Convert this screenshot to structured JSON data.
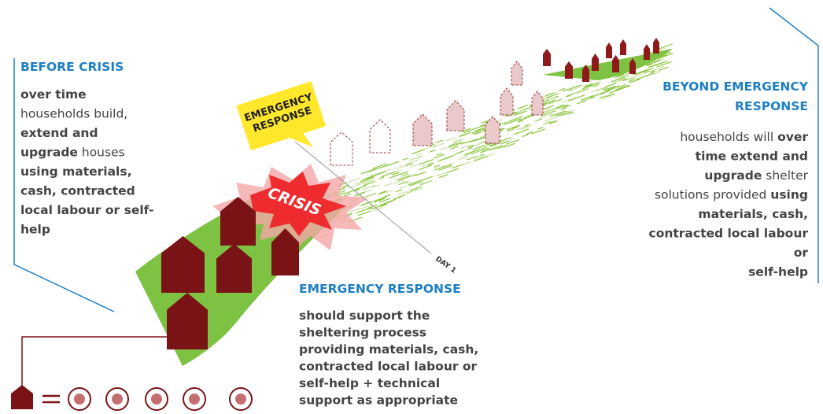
{
  "before": {
    "title": "BEFORE CRISIS",
    "lines": [
      [
        {
          "text": "over time",
          "bold": true
        }
      ],
      [
        {
          "text": "households build,",
          "bold": false
        }
      ],
      [
        {
          "text": "extend and",
          "bold": true
        }
      ],
      [
        {
          "text": "upgrade",
          "bold": true
        },
        {
          "text": " houses",
          "bold": false
        }
      ],
      [
        {
          "text": "using materials,",
          "bold": true
        }
      ],
      [
        {
          "text": "cash, contracted",
          "bold": true
        }
      ],
      [
        {
          "text": "local labour or self-",
          "bold": true
        }
      ],
      [
        {
          "text": "help",
          "bold": true
        }
      ]
    ]
  },
  "emergency": {
    "title": "EMERGENCY RESPONSE",
    "lines": [
      [
        {
          "text": "should support the",
          "bold": true
        }
      ],
      [
        {
          "text": "sheltering process",
          "bold": true
        }
      ],
      [
        {
          "text": "providing materials, cash,",
          "bold": true
        }
      ],
      [
        {
          "text": "contracted local labour or",
          "bold": true
        }
      ],
      [
        {
          "text": "self-help + technical",
          "bold": true
        }
      ],
      [
        {
          "text": "support as appropriate",
          "bold": true
        }
      ]
    ]
  },
  "beyond": {
    "title_lines": [
      "BEYOND EMERGENCY",
      "RESPONSE"
    ],
    "lines": [
      [
        {
          "text": "households will ",
          "bold": false
        },
        {
          "text": "over",
          "bold": true
        }
      ],
      [
        {
          "text": "time extend and",
          "bold": true
        }
      ],
      [
        {
          "text": "upgrade",
          "bold": true
        },
        {
          "text": " shelter",
          "bold": false
        }
      ],
      [
        {
          "text": "solutions provided ",
          "bold": false
        },
        {
          "text": "using",
          "bold": true
        }
      ],
      [
        {
          "text": "materials, cash,",
          "bold": true
        }
      ],
      [
        {
          "text": "contracted local labour",
          "bold": true
        }
      ],
      [
        {
          "text": "or",
          "bold": true
        }
      ],
      [
        {
          "text": "self-help",
          "bold": true
        }
      ]
    ]
  },
  "illustration": {
    "callout_lines": [
      "EMERGENCY",
      "RESPONSE"
    ],
    "crisis_label": "CRISIS",
    "day_label": "DAY 1"
  }
}
